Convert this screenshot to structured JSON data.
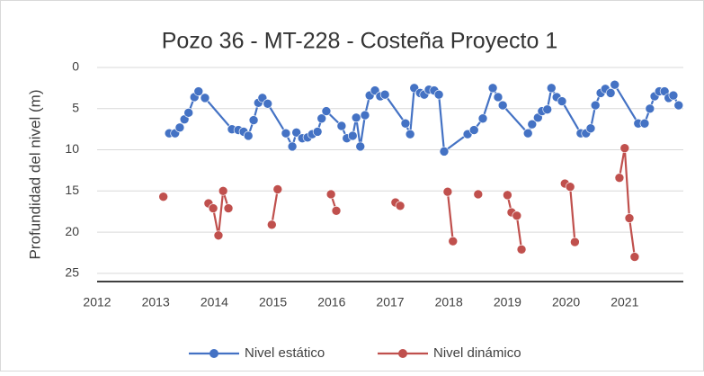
{
  "chart_data": {
    "type": "line",
    "title": "Pozo 36 - MT-228 - Costeña Proyecto 1",
    "y_label": "Profundidad del nivel  (m)",
    "xlim": [
      2012,
      2022
    ],
    "xticks": [
      2012,
      2013,
      2014,
      2015,
      2016,
      2017,
      2018,
      2019,
      2020,
      2021
    ],
    "ylim": [
      0,
      26
    ],
    "yticks": [
      0,
      5,
      10,
      15,
      20,
      25
    ],
    "y_inverted": true,
    "grid": true,
    "legend": "bottom",
    "series": [
      {
        "name": "Nivel estático",
        "color": "#4472c4",
        "x": [
          2013.23,
          2013.33,
          2013.41,
          2013.49,
          2013.56,
          2013.66,
          2013.73,
          2013.84,
          2014.3,
          2014.41,
          2014.5,
          2014.58,
          2014.67,
          2014.75,
          2014.82,
          2014.91,
          2015.22,
          2015.33,
          2015.4,
          2015.5,
          2015.59,
          2015.67,
          2015.76,
          2015.83,
          2015.91,
          2016.17,
          2016.26,
          2016.36,
          2016.42,
          2016.49,
          2016.57,
          2016.65,
          2016.74,
          2016.83,
          2016.91,
          2017.26,
          2017.34,
          2017.41,
          2017.51,
          2017.58,
          2017.66,
          2017.75,
          2017.83,
          2017.92,
          2018.32,
          2018.43,
          2018.58,
          2018.75,
          2018.84,
          2018.92,
          2019.35,
          2019.42,
          2019.52,
          2019.59,
          2019.68,
          2019.75,
          2019.84,
          2019.93,
          2020.25,
          2020.34,
          2020.42,
          2020.5,
          2020.59,
          2020.67,
          2020.76,
          2020.83,
          2021.23,
          2021.34,
          2021.43,
          2021.51,
          2021.59,
          2021.68,
          2021.75,
          2021.83,
          2021.92
        ],
        "values": [
          8.0,
          8.0,
          7.3,
          6.3,
          5.5,
          3.6,
          2.9,
          3.7,
          7.5,
          7.6,
          7.8,
          8.3,
          6.4,
          4.3,
          3.7,
          4.4,
          8.0,
          9.6,
          7.9,
          8.6,
          8.5,
          8.1,
          7.8,
          6.2,
          5.3,
          7.1,
          8.6,
          8.3,
          6.1,
          9.6,
          5.8,
          3.4,
          2.8,
          3.5,
          3.3,
          6.8,
          8.1,
          2.5,
          3.1,
          3.3,
          2.7,
          2.8,
          3.3,
          10.2,
          8.1,
          7.6,
          6.2,
          2.5,
          3.6,
          4.6,
          8.0,
          6.9,
          6.1,
          5.3,
          5.1,
          2.5,
          3.6,
          4.1,
          8.0,
          8.0,
          7.4,
          4.6,
          3.1,
          2.6,
          3.1,
          2.1,
          6.8,
          6.8,
          5.0,
          3.5,
          2.9,
          2.9,
          3.7,
          3.4,
          4.6
        ]
      },
      {
        "name": "Nivel dinámico",
        "color": "#c0504d",
        "x": [
          2013.13,
          null,
          2013.9,
          2013.98,
          2014.07,
          2014.15,
          2014.24,
          null,
          2014.98,
          2015.08,
          null,
          2015.99,
          2016.08,
          null,
          2017.09,
          2017.17,
          null,
          2017.98,
          2018.07,
          null,
          2018.5,
          null,
          2019.0,
          2019.07,
          2019.16,
          2019.24,
          null,
          2019.98,
          2020.07,
          2020.15,
          null,
          2020.91,
          2021.0,
          2021.08,
          2021.17
        ],
        "values": [
          15.7,
          null,
          16.5,
          17.1,
          20.4,
          15.0,
          17.1,
          null,
          19.1,
          14.8,
          null,
          15.4,
          17.4,
          null,
          16.4,
          16.8,
          null,
          15.1,
          21.1,
          null,
          15.4,
          null,
          15.5,
          17.6,
          18.0,
          22.1,
          null,
          14.1,
          14.5,
          21.2,
          null,
          13.4,
          9.8,
          18.3,
          23.0
        ]
      }
    ]
  }
}
